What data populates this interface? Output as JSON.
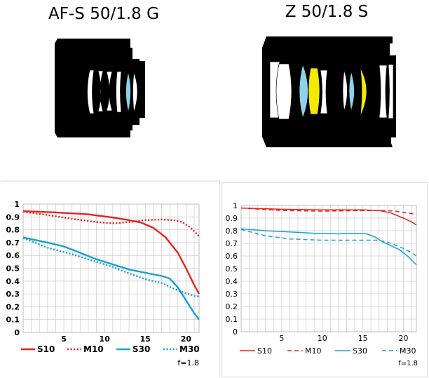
{
  "titles": {
    "left": "AF-S 50/1.8 G",
    "right": "Z 50/1.8 S"
  },
  "colors": {
    "red": "#e8231f",
    "blue": "#1a9fd6",
    "body": "#000000",
    "element_blue": "#8fd0ea",
    "element_yellow": "#f2ea00"
  },
  "chart_data": [
    {
      "type": "line",
      "title": "AF-S 50/1.8 G",
      "xlabel": "",
      "ylabel": "",
      "xlim": [
        0,
        21.6
      ],
      "ylim": [
        0,
        1
      ],
      "x_ticks": [
        "5",
        "10",
        "15",
        "20"
      ],
      "y_ticks": [
        "0",
        "0.1",
        "0.2",
        "0.3",
        "0.4",
        "0.5",
        "0.6",
        "0.7",
        "0.8",
        "0.9",
        "1"
      ],
      "grid": true,
      "legend_position": "bottom",
      "aperture_label": "f=1.8",
      "series": [
        {
          "name": "S10",
          "color": "#e8231f",
          "style": "solid",
          "points": [
            [
              0,
              0.945
            ],
            [
              4,
              0.935
            ],
            [
              8,
              0.92
            ],
            [
              11,
              0.895
            ],
            [
              13,
              0.875
            ],
            [
              14.5,
              0.855
            ],
            [
              16,
              0.815
            ],
            [
              17.5,
              0.74
            ],
            [
              19,
              0.62
            ],
            [
              20,
              0.5
            ],
            [
              21,
              0.37
            ],
            [
              21.6,
              0.3
            ]
          ]
        },
        {
          "name": "M10",
          "color": "#e8231f",
          "style": "dotted",
          "points": [
            [
              0,
              0.94
            ],
            [
              3,
              0.915
            ],
            [
              6,
              0.885
            ],
            [
              9,
              0.86
            ],
            [
              11,
              0.85
            ],
            [
              13,
              0.86
            ],
            [
              15,
              0.875
            ],
            [
              17,
              0.88
            ],
            [
              18.5,
              0.875
            ],
            [
              19.5,
              0.86
            ],
            [
              20.5,
              0.82
            ],
            [
              21.6,
              0.75
            ]
          ]
        },
        {
          "name": "S30",
          "color": "#1a9fd6",
          "style": "solid",
          "points": [
            [
              0,
              0.74
            ],
            [
              3,
              0.7
            ],
            [
              5,
              0.67
            ],
            [
              7,
              0.62
            ],
            [
              9,
              0.57
            ],
            [
              11,
              0.53
            ],
            [
              13,
              0.49
            ],
            [
              15,
              0.465
            ],
            [
              17,
              0.44
            ],
            [
              18,
              0.42
            ],
            [
              19,
              0.35
            ],
            [
              20,
              0.25
            ],
            [
              21,
              0.15
            ],
            [
              21.6,
              0.1
            ]
          ]
        },
        {
          "name": "M30",
          "color": "#1a9fd6",
          "style": "dotted",
          "points": [
            [
              0,
              0.735
            ],
            [
              3,
              0.66
            ],
            [
              6,
              0.61
            ],
            [
              9,
              0.55
            ],
            [
              11,
              0.51
            ],
            [
              13,
              0.46
            ],
            [
              15,
              0.415
            ],
            [
              17,
              0.385
            ],
            [
              18.5,
              0.34
            ],
            [
              20,
              0.305
            ],
            [
              21,
              0.285
            ],
            [
              21.6,
              0.28
            ]
          ]
        }
      ]
    },
    {
      "type": "line",
      "title": "Z 50/1.8 S",
      "xlabel": "",
      "ylabel": "",
      "xlim": [
        0,
        21.6
      ],
      "ylim": [
        0,
        1
      ],
      "x_ticks": [
        "5",
        "10",
        "15",
        "20"
      ],
      "y_ticks": [
        "0",
        "0.1",
        "0.2",
        "0.3",
        "0.4",
        "0.5",
        "0.6",
        "0.7",
        "0.8",
        "0.9",
        "1"
      ],
      "grid": true,
      "legend_position": "bottom",
      "aperture_label": "f=1.8",
      "series": [
        {
          "name": "S10",
          "color": "#e8231f",
          "style": "solid",
          "points": [
            [
              0,
              0.98
            ],
            [
              5,
              0.97
            ],
            [
              10,
              0.965
            ],
            [
              15,
              0.965
            ],
            [
              17,
              0.96
            ],
            [
              18.5,
              0.94
            ],
            [
              20,
              0.9
            ],
            [
              21,
              0.87
            ],
            [
              21.6,
              0.845
            ]
          ]
        },
        {
          "name": "M10",
          "color": "#e8231f",
          "style": "dashed",
          "points": [
            [
              0,
              0.98
            ],
            [
              5,
              0.96
            ],
            [
              10,
              0.955
            ],
            [
              15,
              0.96
            ],
            [
              17.5,
              0.96
            ],
            [
              19,
              0.955
            ],
            [
              20.5,
              0.94
            ],
            [
              21.6,
              0.93
            ]
          ]
        },
        {
          "name": "S30",
          "color": "#1a9fd6",
          "style": "solid",
          "points": [
            [
              0,
              0.815
            ],
            [
              3,
              0.8
            ],
            [
              6,
              0.79
            ],
            [
              9,
              0.78
            ],
            [
              12,
              0.775
            ],
            [
              14,
              0.78
            ],
            [
              15.5,
              0.775
            ],
            [
              16.5,
              0.75
            ],
            [
              17.5,
              0.71
            ],
            [
              18.5,
              0.68
            ],
            [
              19.5,
              0.65
            ],
            [
              20.5,
              0.6
            ],
            [
              21.6,
              0.53
            ]
          ]
        },
        {
          "name": "M30",
          "color": "#1a9fd6",
          "style": "dashed",
          "points": [
            [
              0,
              0.81
            ],
            [
              3,
              0.76
            ],
            [
              6,
              0.735
            ],
            [
              10,
              0.725
            ],
            [
              14,
              0.725
            ],
            [
              17,
              0.725
            ],
            [
              18.5,
              0.7
            ],
            [
              20,
              0.66
            ],
            [
              21,
              0.625
            ],
            [
              21.6,
              0.6
            ]
          ]
        }
      ]
    }
  ]
}
